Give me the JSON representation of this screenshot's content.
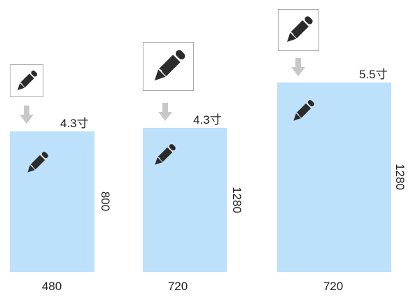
{
  "devices": [
    {
      "size": "4.3寸",
      "width": "480",
      "height": "800",
      "icon": "pencil-icon"
    },
    {
      "size": "4.3寸",
      "width": "720",
      "height": "1280",
      "icon": "pencil-icon"
    },
    {
      "size": "5.5寸",
      "width": "720",
      "height": "1280",
      "icon": "pencil-icon"
    }
  ],
  "colors": {
    "screen": "#bde0fb",
    "arrow": "#c8c8c8",
    "icon": "#2b2b2b",
    "icon_box_border": "#a9a9a9"
  }
}
